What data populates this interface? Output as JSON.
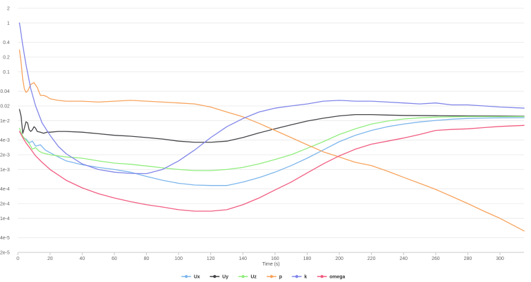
{
  "chart_data": {
    "type": "line",
    "title": "",
    "xlabel": "Time (s)",
    "ylabel": "",
    "xscale": "linear",
    "yscale": "log",
    "xlim": [
      0,
      315
    ],
    "ylim": [
      2e-05,
      2
    ],
    "grid": "horizontal",
    "legend_position": "bottom-center",
    "x_ticks": [
      0,
      20,
      40,
      60,
      80,
      100,
      120,
      140,
      160,
      180,
      200,
      220,
      240,
      260,
      280,
      300
    ],
    "x_tick_labels": [
      "0",
      "20",
      "40",
      "60",
      "80",
      "100",
      "120",
      "140",
      "160",
      "180",
      "200",
      "220",
      "240",
      "260",
      "280",
      "300"
    ],
    "y_ticks": [
      2,
      1,
      0.4,
      0.2,
      0.1,
      0.04,
      0.02,
      0.01,
      0.004,
      0.002,
      0.001,
      0.0004,
      0.0002,
      0.0001,
      4e-05,
      2e-05
    ],
    "y_tick_labels": [
      "2",
      "1",
      "0.4",
      "0.2",
      "0.1",
      "0.04",
      "0.02",
      "1e-2",
      "4e-3",
      "2e-3",
      "1e-3",
      "4e-4",
      "2e-4",
      "1e-4",
      "4e-5",
      "2e-5"
    ],
    "series": [
      {
        "name": "Ux",
        "color": "#7cb5ec",
        "points": [
          [
            1,
            0.006
          ],
          [
            3,
            0.0045
          ],
          [
            5,
            0.0042
          ],
          [
            7,
            0.0035
          ],
          [
            9,
            0.0038
          ],
          [
            11,
            0.003
          ],
          [
            14,
            0.0032
          ],
          [
            17,
            0.0025
          ],
          [
            20,
            0.0022
          ],
          [
            30,
            0.0015
          ],
          [
            40,
            0.00125
          ],
          [
            50,
            0.0011
          ],
          [
            60,
            0.001
          ],
          [
            70,
            0.00088
          ],
          [
            80,
            0.00072
          ],
          [
            90,
            0.0006
          ],
          [
            100,
            0.00052
          ],
          [
            110,
            0.00048
          ],
          [
            120,
            0.00047
          ],
          [
            130,
            0.00047
          ],
          [
            140,
            0.00055
          ],
          [
            150,
            0.00068
          ],
          [
            160,
            0.00088
          ],
          [
            170,
            0.0012
          ],
          [
            180,
            0.0017
          ],
          [
            190,
            0.0025
          ],
          [
            200,
            0.0037
          ],
          [
            210,
            0.005
          ],
          [
            220,
            0.0063
          ],
          [
            230,
            0.0075
          ],
          [
            240,
            0.0085
          ],
          [
            250,
            0.0094
          ],
          [
            260,
            0.0101
          ],
          [
            270,
            0.0107
          ],
          [
            280,
            0.0111
          ],
          [
            290,
            0.0113
          ],
          [
            300,
            0.0114
          ],
          [
            315,
            0.0115
          ]
        ]
      },
      {
        "name": "Uy",
        "color": "#434348",
        "points": [
          [
            1,
            0.017
          ],
          [
            2,
            0.012
          ],
          [
            3,
            0.0055
          ],
          [
            4,
            0.007
          ],
          [
            5,
            0.0095
          ],
          [
            6,
            0.009
          ],
          [
            7,
            0.0065
          ],
          [
            8,
            0.006
          ],
          [
            9,
            0.0065
          ],
          [
            10,
            0.0075
          ],
          [
            11,
            0.007
          ],
          [
            12,
            0.006
          ],
          [
            14,
            0.0058
          ],
          [
            16,
            0.0055
          ],
          [
            18,
            0.0058
          ],
          [
            20,
            0.0058
          ],
          [
            25,
            0.006
          ],
          [
            30,
            0.006
          ],
          [
            40,
            0.0058
          ],
          [
            50,
            0.0054
          ],
          [
            60,
            0.005
          ],
          [
            70,
            0.0048
          ],
          [
            80,
            0.0045
          ],
          [
            90,
            0.0042
          ],
          [
            100,
            0.0038
          ],
          [
            110,
            0.0036
          ],
          [
            120,
            0.0036
          ],
          [
            130,
            0.0038
          ],
          [
            140,
            0.0045
          ],
          [
            150,
            0.0056
          ],
          [
            160,
            0.0068
          ],
          [
            170,
            0.0082
          ],
          [
            180,
            0.0098
          ],
          [
            190,
            0.0112
          ],
          [
            200,
            0.0125
          ],
          [
            210,
            0.0133
          ],
          [
            220,
            0.0133
          ],
          [
            230,
            0.013
          ],
          [
            240,
            0.0128
          ],
          [
            260,
            0.0126
          ],
          [
            280,
            0.0125
          ],
          [
            300,
            0.0124
          ],
          [
            315,
            0.0123
          ]
        ]
      },
      {
        "name": "Uz",
        "color": "#90ed7d",
        "points": [
          [
            1,
            0.007
          ],
          [
            3,
            0.0048
          ],
          [
            5,
            0.004
          ],
          [
            7,
            0.0034
          ],
          [
            9,
            0.0026
          ],
          [
            11,
            0.0028
          ],
          [
            13,
            0.0024
          ],
          [
            15,
            0.0022
          ],
          [
            20,
            0.002
          ],
          [
            30,
            0.0018
          ],
          [
            40,
            0.0017
          ],
          [
            50,
            0.0015
          ],
          [
            60,
            0.00135
          ],
          [
            70,
            0.00128
          ],
          [
            80,
            0.00118
          ],
          [
            90,
            0.00108
          ],
          [
            100,
            0.001
          ],
          [
            110,
            0.00095
          ],
          [
            120,
            0.00095
          ],
          [
            130,
            0.001
          ],
          [
            140,
            0.0011
          ],
          [
            150,
            0.0013
          ],
          [
            160,
            0.0016
          ],
          [
            170,
            0.002
          ],
          [
            180,
            0.0027
          ],
          [
            190,
            0.0037
          ],
          [
            200,
            0.0052
          ],
          [
            210,
            0.0068
          ],
          [
            220,
            0.0085
          ],
          [
            230,
            0.0098
          ],
          [
            240,
            0.0108
          ],
          [
            250,
            0.0114
          ],
          [
            260,
            0.0118
          ],
          [
            270,
            0.012
          ],
          [
            280,
            0.0121
          ],
          [
            300,
            0.0121
          ],
          [
            315,
            0.0121
          ]
        ]
      },
      {
        "name": "p",
        "color": "#f7a35c",
        "points": [
          [
            1,
            0.28
          ],
          [
            2,
            0.15
          ],
          [
            3,
            0.07
          ],
          [
            4,
            0.045
          ],
          [
            5,
            0.038
          ],
          [
            6,
            0.04
          ],
          [
            8,
            0.055
          ],
          [
            10,
            0.06
          ],
          [
            12,
            0.048
          ],
          [
            14,
            0.033
          ],
          [
            16,
            0.033
          ],
          [
            18,
            0.031
          ],
          [
            20,
            0.028
          ],
          [
            25,
            0.026
          ],
          [
            30,
            0.025
          ],
          [
            40,
            0.025
          ],
          [
            50,
            0.024
          ],
          [
            60,
            0.025
          ],
          [
            70,
            0.026
          ],
          [
            80,
            0.025
          ],
          [
            90,
            0.024
          ],
          [
            100,
            0.023
          ],
          [
            110,
            0.022
          ],
          [
            120,
            0.019
          ],
          [
            130,
            0.015
          ],
          [
            140,
            0.012
          ],
          [
            150,
            0.0088
          ],
          [
            160,
            0.0063
          ],
          [
            170,
            0.0045
          ],
          [
            180,
            0.0032
          ],
          [
            190,
            0.0023
          ],
          [
            200,
            0.0018
          ],
          [
            210,
            0.0014
          ],
          [
            220,
            0.0012
          ],
          [
            230,
            0.00092
          ],
          [
            240,
            0.00069
          ],
          [
            250,
            0.00052
          ],
          [
            260,
            0.00039
          ],
          [
            270,
            0.00028
          ],
          [
            280,
            0.0002
          ],
          [
            290,
            0.00014
          ],
          [
            300,
            0.0001
          ],
          [
            315,
            5.5e-05
          ]
        ]
      },
      {
        "name": "k",
        "color": "#8085e9",
        "points": [
          [
            1,
            1
          ],
          [
            3,
            0.35
          ],
          [
            5,
            0.14
          ],
          [
            8,
            0.045
          ],
          [
            11,
            0.02
          ],
          [
            15,
            0.009
          ],
          [
            20,
            0.005
          ],
          [
            25,
            0.003
          ],
          [
            30,
            0.0021
          ],
          [
            40,
            0.0013
          ],
          [
            50,
            0.001
          ],
          [
            60,
            0.00088
          ],
          [
            70,
            0.00083
          ],
          [
            80,
            0.00082
          ],
          [
            90,
            0.001
          ],
          [
            100,
            0.0015
          ],
          [
            110,
            0.0025
          ],
          [
            120,
            0.0045
          ],
          [
            130,
            0.0075
          ],
          [
            140,
            0.011
          ],
          [
            150,
            0.015
          ],
          [
            160,
            0.018
          ],
          [
            170,
            0.02
          ],
          [
            180,
            0.022
          ],
          [
            190,
            0.025
          ],
          [
            200,
            0.026
          ],
          [
            210,
            0.025
          ],
          [
            220,
            0.025
          ],
          [
            230,
            0.024
          ],
          [
            240,
            0.023
          ],
          [
            250,
            0.022
          ],
          [
            260,
            0.023
          ],
          [
            270,
            0.021
          ],
          [
            280,
            0.021
          ],
          [
            290,
            0.02
          ],
          [
            300,
            0.019
          ],
          [
            315,
            0.018
          ]
        ]
      },
      {
        "name": "omega",
        "color": "#f15c80",
        "points": [
          [
            1,
            0.006
          ],
          [
            3,
            0.0045
          ],
          [
            5,
            0.0035
          ],
          [
            8,
            0.0026
          ],
          [
            11,
            0.0019
          ],
          [
            15,
            0.0014
          ],
          [
            20,
            0.001
          ],
          [
            30,
            0.0006
          ],
          [
            40,
            0.00042
          ],
          [
            50,
            0.00032
          ],
          [
            60,
            0.00026
          ],
          [
            70,
            0.00022
          ],
          [
            80,
            0.00019
          ],
          [
            90,
            0.00017
          ],
          [
            100,
            0.00015
          ],
          [
            110,
            0.00014
          ],
          [
            120,
            0.00014
          ],
          [
            130,
            0.00015
          ],
          [
            140,
            0.00019
          ],
          [
            150,
            0.00026
          ],
          [
            160,
            0.00038
          ],
          [
            170,
            0.00055
          ],
          [
            180,
            0.00085
          ],
          [
            190,
            0.0013
          ],
          [
            200,
            0.0019
          ],
          [
            210,
            0.0026
          ],
          [
            220,
            0.0033
          ],
          [
            230,
            0.0038
          ],
          [
            240,
            0.0044
          ],
          [
            250,
            0.0052
          ],
          [
            260,
            0.0063
          ],
          [
            270,
            0.0066
          ],
          [
            280,
            0.0068
          ],
          [
            290,
            0.0072
          ],
          [
            300,
            0.0076
          ],
          [
            315,
            0.008
          ]
        ]
      }
    ]
  }
}
